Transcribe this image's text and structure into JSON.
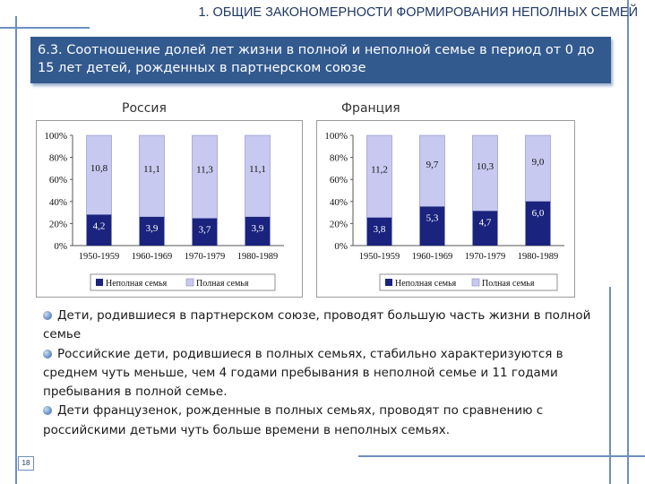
{
  "header": {
    "title": "1. ОБЩИЕ ЗАКОНОМЕРНОСТИ ФОРМИРОВАНИЯ НЕПОЛНЫХ СЕМЕЙ"
  },
  "banner": {
    "text": "6.3. Соотношение долей лет жизни в полной и неполной семье  в период от 0 до 15 лет детей, рожденных в партнерском союзе"
  },
  "colors": {
    "incomplete": "#1a237e",
    "complete": "#c7c9f0",
    "accent": "#335a8f"
  },
  "chart_data": [
    {
      "type": "bar",
      "stacked": true,
      "title": "Россия",
      "categories": [
        "1950-1959",
        "1960-1969",
        "1970-1979",
        "1980-1989"
      ],
      "series": [
        {
          "name": "Неполная семья",
          "values": [
            4.2,
            3.9,
            3.7,
            3.9
          ]
        },
        {
          "name": "Полная семья",
          "values": [
            10.8,
            11.1,
            11.3,
            11.1
          ]
        }
      ],
      "labels_incomplete": [
        "4,2",
        "3,9",
        "3,7",
        "3,9"
      ],
      "labels_complete": [
        "10,8",
        "11,1",
        "11,3",
        "11,1"
      ],
      "ytick_labels": [
        "0%",
        "20%",
        "40%",
        "60%",
        "80%",
        "100%"
      ],
      "ylim": [
        0,
        100
      ],
      "legend_position": "bottom",
      "grid": false
    },
    {
      "type": "bar",
      "stacked": true,
      "title": "Франция",
      "categories": [
        "1950-1959",
        "1960-1969",
        "1970-1979",
        "1980-1989"
      ],
      "series": [
        {
          "name": "Неполная семья",
          "values": [
            3.8,
            5.3,
            4.7,
            6.0
          ]
        },
        {
          "name": "Полная семья",
          "values": [
            11.2,
            9.7,
            10.3,
            9.0
          ]
        }
      ],
      "labels_incomplete": [
        "3,8",
        "5,3",
        "4,7",
        "6,0"
      ],
      "labels_complete": [
        "11,2",
        "9,7",
        "10,3",
        "9,0"
      ],
      "ytick_labels": [
        "0%",
        "20%",
        "40%",
        "60%",
        "80%",
        "100%"
      ],
      "ylim": [
        0,
        100
      ],
      "legend_position": "bottom",
      "grid": false
    }
  ],
  "bullets": [
    "Дети, родившиеся в партнерском союзе, проводят большую часть жизни в полной семье",
    "Российские дети, родившиеся в полных семьях, стабильно характеризуются в среднем чуть меньше, чем 4 годами пребывания в неполной семье и 11 годами пребывания в полной семье.",
    "Дети французенок, рожденные в полных семьях, проводят по сравнению с российскими детьми чуть больше времени в неполных семьях."
  ],
  "page_number": "18"
}
